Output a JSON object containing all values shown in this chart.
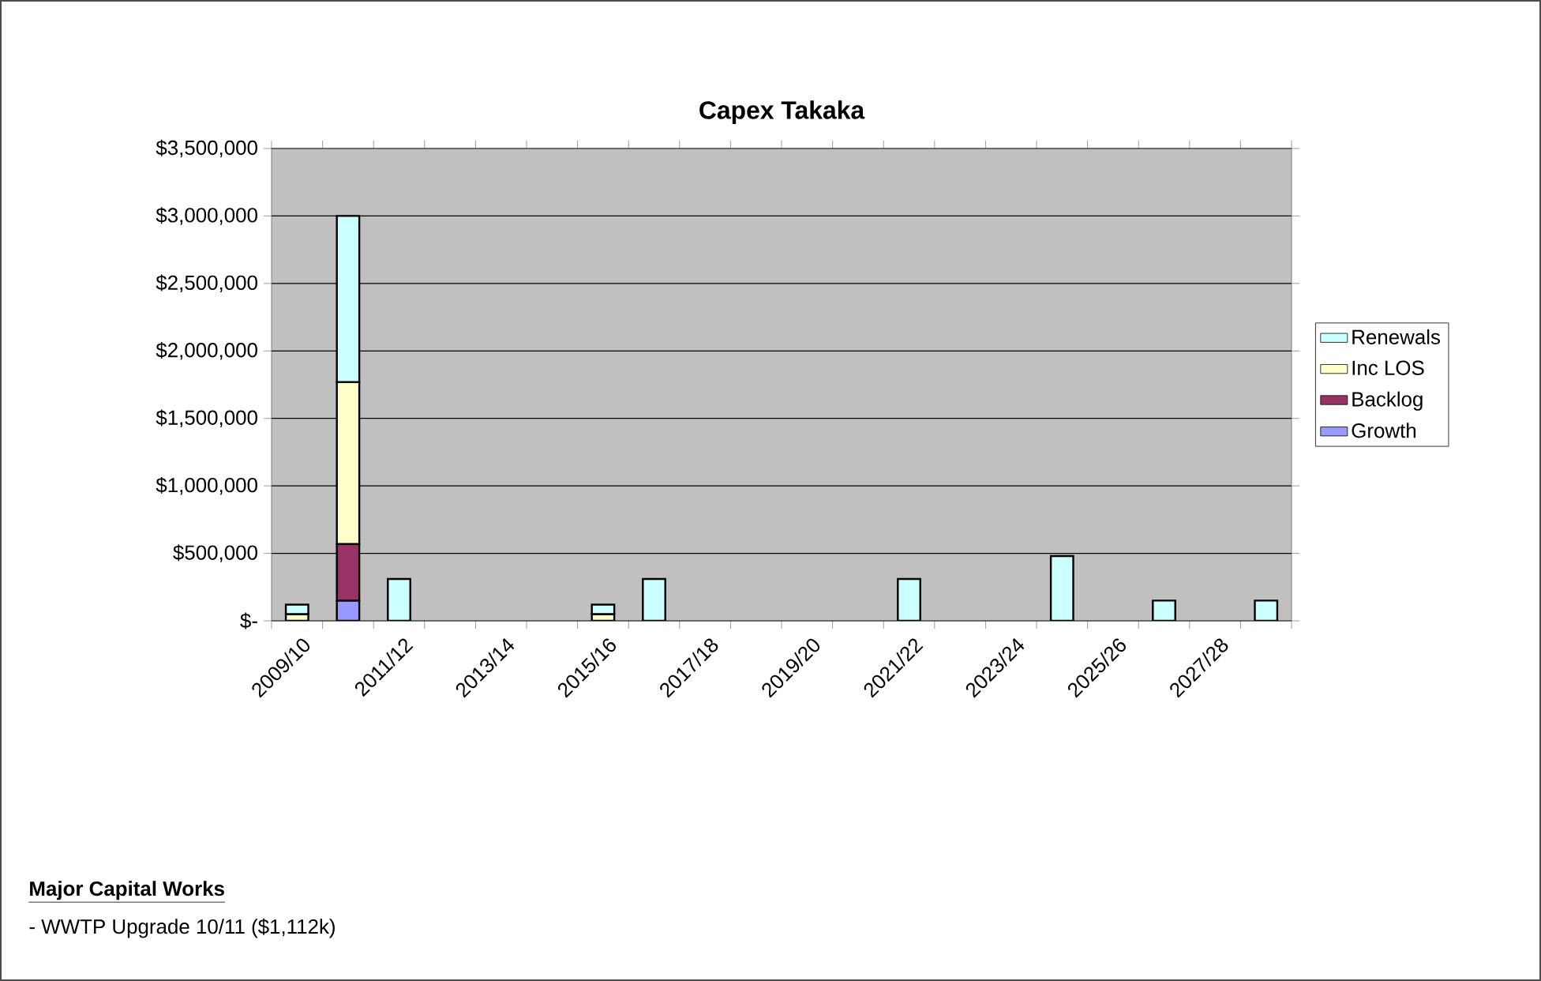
{
  "chart_data": {
    "type": "bar",
    "title": "Capex Takaka",
    "stacked": true,
    "categories": [
      "2009/10",
      null,
      "2011/12",
      null,
      "2013/14",
      null,
      "2015/16",
      null,
      "2017/18",
      null,
      "2019/20",
      null,
      "2021/22",
      null,
      "2023/24",
      null,
      "2025/26",
      null,
      "2027/28",
      null
    ],
    "series": [
      {
        "name": "Growth",
        "color": "#9999ff",
        "values": [
          null,
          150000,
          null,
          null,
          null,
          null,
          null,
          null,
          null,
          null,
          null,
          null,
          null,
          null,
          null,
          null,
          null,
          null,
          null,
          null
        ]
      },
      {
        "name": "Backlog",
        "color": "#993366",
        "values": [
          null,
          420000,
          null,
          null,
          null,
          null,
          null,
          null,
          null,
          null,
          null,
          null,
          null,
          null,
          null,
          null,
          null,
          null,
          null,
          null
        ]
      },
      {
        "name": "Inc LOS",
        "color": "#ffffcc",
        "values": [
          50000,
          1200000,
          null,
          null,
          null,
          null,
          50000,
          null,
          null,
          null,
          null,
          null,
          null,
          null,
          null,
          null,
          null,
          null,
          null,
          null
        ]
      },
      {
        "name": "Renewals",
        "color": "#ccffff",
        "values": [
          70000,
          1230000,
          310000,
          null,
          null,
          null,
          70000,
          310000,
          null,
          null,
          null,
          null,
          310000,
          null,
          null,
          480000,
          null,
          150000,
          null,
          150000
        ]
      }
    ],
    "ylim": [
      0,
      3500000
    ],
    "yticks": [
      {
        "value": 0,
        "label": "$-"
      },
      {
        "value": 500000,
        "label": "$500,000"
      },
      {
        "value": 1000000,
        "label": "$1,000,000"
      },
      {
        "value": 1500000,
        "label": "$1,500,000"
      },
      {
        "value": 2000000,
        "label": "$2,000,000"
      },
      {
        "value": 2500000,
        "label": "$2,500,000"
      },
      {
        "value": 3000000,
        "label": "$3,000,000"
      },
      {
        "value": 3500000,
        "label": "$3,500,000"
      }
    ],
    "grid": "y",
    "legend": "right",
    "annotations": [
      "Major Capital Works",
      "- WWTP Upgrade 10/11 ($1,112k)"
    ]
  }
}
